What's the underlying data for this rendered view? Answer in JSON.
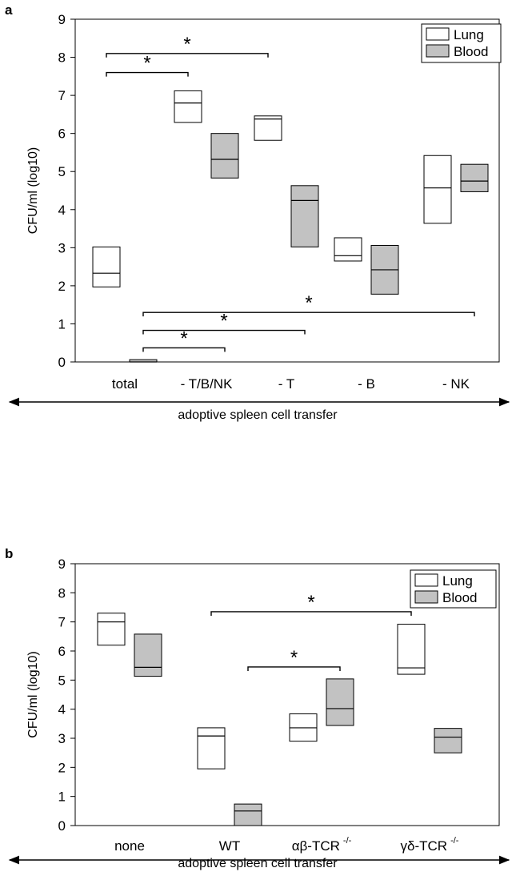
{
  "chart_data": [
    {
      "panel_label": "a",
      "type": "box",
      "xlabel": "adoptive spleen cell transfer",
      "ylabel": "CFU/ml (log10)",
      "ylim": [
        0,
        9
      ],
      "yticks": [
        0,
        1,
        2,
        3,
        4,
        5,
        6,
        7,
        8,
        9
      ],
      "categories": [
        "total",
        "- T/B/NK",
        "- T",
        "- B",
        "- NK"
      ],
      "legend": {
        "position": "top-right",
        "entries": [
          "Lung",
          "Blood"
        ]
      },
      "series": [
        {
          "name": "Lung",
          "boxes": [
            {
              "low": 1.97,
              "median": 2.33,
              "high": 3.02
            },
            {
              "low": 6.29,
              "median": 6.8,
              "high": 7.12
            },
            {
              "low": 5.82,
              "median": 6.38,
              "high": 6.46
            },
            {
              "low": 2.65,
              "median": 2.79,
              "high": 3.26
            },
            {
              "low": 3.64,
              "median": 4.57,
              "high": 5.42
            }
          ]
        },
        {
          "name": "Blood",
          "boxes": [
            {
              "low": 0.0,
              "median": 0.0,
              "high": 0.06
            },
            {
              "low": 4.83,
              "median": 5.32,
              "high": 6.0
            },
            {
              "low": 3.02,
              "median": 4.24,
              "high": 4.63
            },
            {
              "low": 1.78,
              "median": 2.42,
              "high": 3.06
            },
            {
              "low": 4.47,
              "median": 4.75,
              "high": 5.19
            }
          ]
        }
      ],
      "significance": [
        {
          "from": "total Lung",
          "to": "- T/B/NK Lung",
          "y": 7.6,
          "label": "*"
        },
        {
          "from": "total Lung",
          "to": "- T Lung",
          "y": 8.1,
          "label": "*"
        },
        {
          "from": "total Blood",
          "to": "- T/B/NK Blood",
          "y": 0.37,
          "label": "*"
        },
        {
          "from": "total Blood",
          "to": "- T Blood",
          "y": 0.83,
          "label": "*"
        },
        {
          "from": "total Blood",
          "to": "- NK Blood",
          "y": 1.3,
          "label": "*"
        }
      ]
    },
    {
      "panel_label": "b",
      "type": "box",
      "xlabel": "adoptive spleen cell transfer",
      "ylabel": "CFU/ml (log10)",
      "ylim": [
        0,
        9
      ],
      "yticks": [
        0,
        1,
        2,
        3,
        4,
        5,
        6,
        7,
        8,
        9
      ],
      "categories": [
        {
          "base": "none",
          "sup": ""
        },
        {
          "base": "WT",
          "sup": ""
        },
        {
          "base": "αβ-TCR",
          "sup": "-/-"
        },
        {
          "base": "γδ-TCR",
          "sup": "-/-"
        }
      ],
      "legend": {
        "position": "top-right",
        "entries": [
          "Lung",
          "Blood"
        ]
      },
      "series": [
        {
          "name": "Lung",
          "boxes": [
            {
              "low": 6.2,
              "median": 7.0,
              "high": 7.3
            },
            {
              "low": 1.95,
              "median": 3.08,
              "high": 3.36
            },
            {
              "low": 2.9,
              "median": 3.36,
              "high": 3.84
            },
            {
              "low": 5.2,
              "median": 5.42,
              "high": 6.92
            }
          ]
        },
        {
          "name": "Blood",
          "boxes": [
            {
              "low": 5.13,
              "median": 5.44,
              "high": 6.58
            },
            {
              "low": 0.0,
              "median": 0.5,
              "high": 0.74
            },
            {
              "low": 3.44,
              "median": 4.02,
              "high": 5.04
            },
            {
              "low": 2.5,
              "median": 3.04,
              "high": 3.34
            }
          ]
        }
      ],
      "significance": [
        {
          "from": "WT Lung",
          "to": "γδ-TCR-/- Lung",
          "y": 7.35,
          "label": "*"
        },
        {
          "from": "WT Blood",
          "to": "αβ-TCR-/- Blood",
          "y": 5.45,
          "label": "*"
        }
      ]
    }
  ],
  "colors": {
    "lung_fill": "#ffffff",
    "blood_fill": "#c2c2c2",
    "stroke": "#000000"
  }
}
